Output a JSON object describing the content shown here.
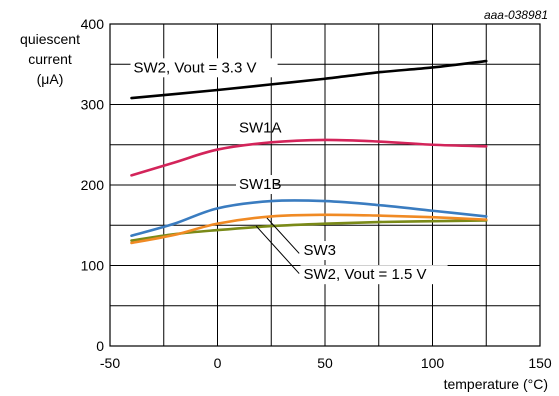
{
  "chart_data": {
    "type": "line",
    "figure_id": "aaa-038981",
    "ylabel": "quiescent\ncurrent\n(μA)",
    "xlabel": "temperature (°C)",
    "xlim": [
      -50,
      150
    ],
    "ylim": [
      0,
      400
    ],
    "xticks": [
      -50,
      0,
      50,
      100,
      150
    ],
    "xtick_labels": [
      "-50",
      "0",
      "50",
      "100",
      "150"
    ],
    "yticks": [
      0,
      100,
      200,
      300,
      400
    ],
    "ytick_labels": [
      "0",
      "100",
      "200",
      "300",
      "400"
    ],
    "grid": true,
    "grid_minor_x_step": 25,
    "grid_minor_y_step": 50,
    "series": [
      {
        "name": "SW2, Vout = 3.3 V",
        "color": "#000000",
        "x": [
          -40,
          0,
          25,
          50,
          75,
          100,
          125
        ],
        "y": [
          308,
          318,
          325,
          332,
          340,
          346,
          354
        ]
      },
      {
        "name": "SW1A",
        "color": "#d3245a",
        "x": [
          -40,
          -20,
          0,
          25,
          50,
          75,
          100,
          125
        ],
        "y": [
          212,
          228,
          244,
          253,
          256,
          254,
          250,
          248
        ]
      },
      {
        "name": "SW1B",
        "color": "#3a7cc0",
        "x": [
          -40,
          -20,
          0,
          25,
          50,
          75,
          100,
          125
        ],
        "y": [
          137,
          152,
          171,
          180,
          180,
          175,
          168,
          161
        ]
      },
      {
        "name": "SW3",
        "color": "#f08a24",
        "x": [
          -40,
          -20,
          0,
          25,
          50,
          75,
          100,
          125
        ],
        "y": [
          128,
          138,
          152,
          161,
          163,
          162,
          160,
          157
        ]
      },
      {
        "name": "SW2, Vout = 1.5 V",
        "color": "#7a8a18",
        "x": [
          -40,
          -20,
          0,
          25,
          50,
          75,
          100,
          125
        ],
        "y": [
          131,
          139,
          144,
          149,
          152,
          154,
          155,
          156
        ]
      }
    ]
  }
}
